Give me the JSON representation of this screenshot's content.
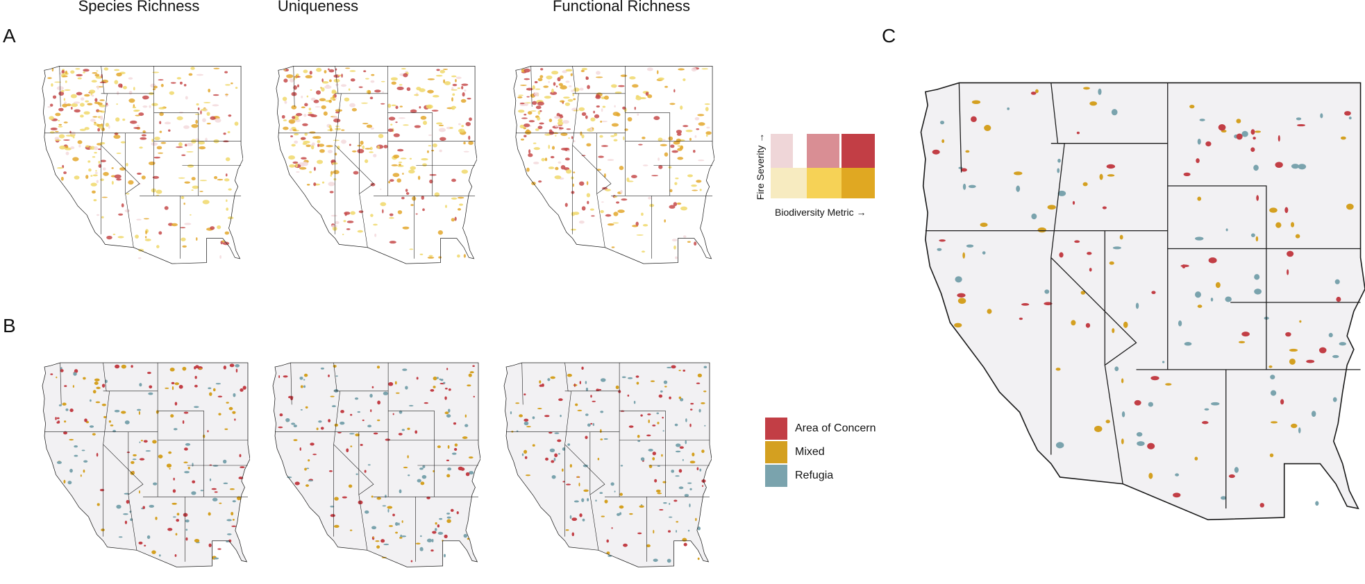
{
  "panels": {
    "a_label": "A",
    "b_label": "B",
    "c_label": "C"
  },
  "columns": {
    "species_richness": "Species Richness",
    "uniqueness": "Uniqueness",
    "functional_richness": "Functional Richness"
  },
  "bivariate_legend": {
    "y_label": "Fire Severity →",
    "x_label": "Biodiversity Metric →",
    "colors": {
      "low_fire": [
        "#f7ebc0",
        "#f6d256",
        "#e0a822"
      ],
      "mid_fire": [
        "#efd6d8",
        "#d98e94",
        "#c23e45"
      ]
    }
  },
  "category_legend": {
    "items": [
      {
        "label": "Area of Concern",
        "color": "#c23e45"
      },
      {
        "label": "Mixed",
        "color": "#d4a020"
      },
      {
        "label": "Refugia",
        "color": "#7aa3ad"
      }
    ]
  },
  "map_colors": {
    "land": "#f2f1f3",
    "border": "#1a1a1a",
    "concern": "#c23e45",
    "mixed": "#d4a020",
    "refugia": "#7aa3ad",
    "heat_low": "#f0d86a",
    "heat_mid": "#e3a72b",
    "heat_high": "#c64a4a",
    "heat_pale": "#f3d9dc"
  }
}
